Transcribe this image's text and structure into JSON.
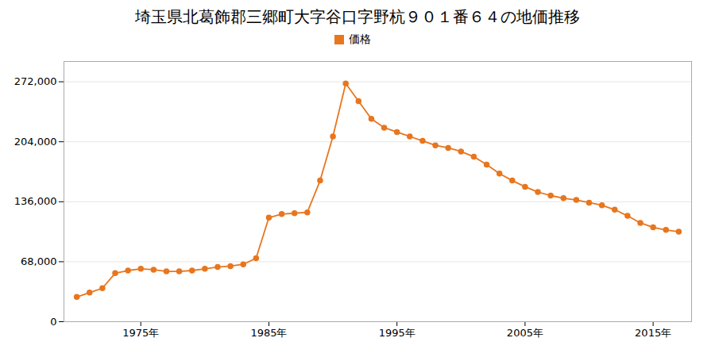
{
  "chart_data": {
    "type": "line",
    "title": "埼玉県北葛飾郡三郷町大字谷口字野杭９０１番６４の地価推移",
    "x": [
      1970,
      1971,
      1972,
      1973,
      1974,
      1975,
      1976,
      1977,
      1978,
      1979,
      1980,
      1981,
      1982,
      1983,
      1984,
      1985,
      1986,
      1987,
      1988,
      1989,
      1990,
      1991,
      1992,
      1993,
      1994,
      1995,
      1996,
      1997,
      1998,
      1999,
      2000,
      2001,
      2002,
      2003,
      2004,
      2005,
      2006,
      2007,
      2008,
      2009,
      2010,
      2011,
      2012,
      2013,
      2014,
      2015,
      2016,
      2017
    ],
    "series": [
      {
        "name": "価格",
        "color": "#e8761e",
        "marker": "circle",
        "values": [
          28000,
          33000,
          38000,
          55000,
          58000,
          60000,
          59000,
          57000,
          57000,
          58000,
          60000,
          62000,
          63000,
          65000,
          72000,
          118000,
          122000,
          123000,
          124000,
          160000,
          210000,
          270000,
          250000,
          230000,
          220000,
          215000,
          210000,
          205000,
          200000,
          197000,
          193000,
          187000,
          178000,
          168000,
          160000,
          153000,
          147000,
          143000,
          140000,
          138000,
          135000,
          132000,
          127000,
          120000,
          112000,
          107000,
          104000,
          102000
        ]
      }
    ],
    "xlim": [
      1969,
      2018
    ],
    "xticks": [
      {
        "value": 1975,
        "label": "1975年"
      },
      {
        "value": 1985,
        "label": "1985年"
      },
      {
        "value": 1995,
        "label": "1995年"
      },
      {
        "value": 2005,
        "label": "2005年"
      },
      {
        "value": 2015,
        "label": "2015年"
      }
    ],
    "ylim": [
      0,
      295000
    ],
    "yticks": [
      0,
      {
        "value": 68000,
        "label": "68,000"
      },
      {
        "value": 136000,
        "label": "136,000"
      },
      {
        "value": 204000,
        "label": "204,000"
      },
      {
        "value": 272000,
        "label": "272,000"
      }
    ],
    "grid": true,
    "legend": "top"
  }
}
